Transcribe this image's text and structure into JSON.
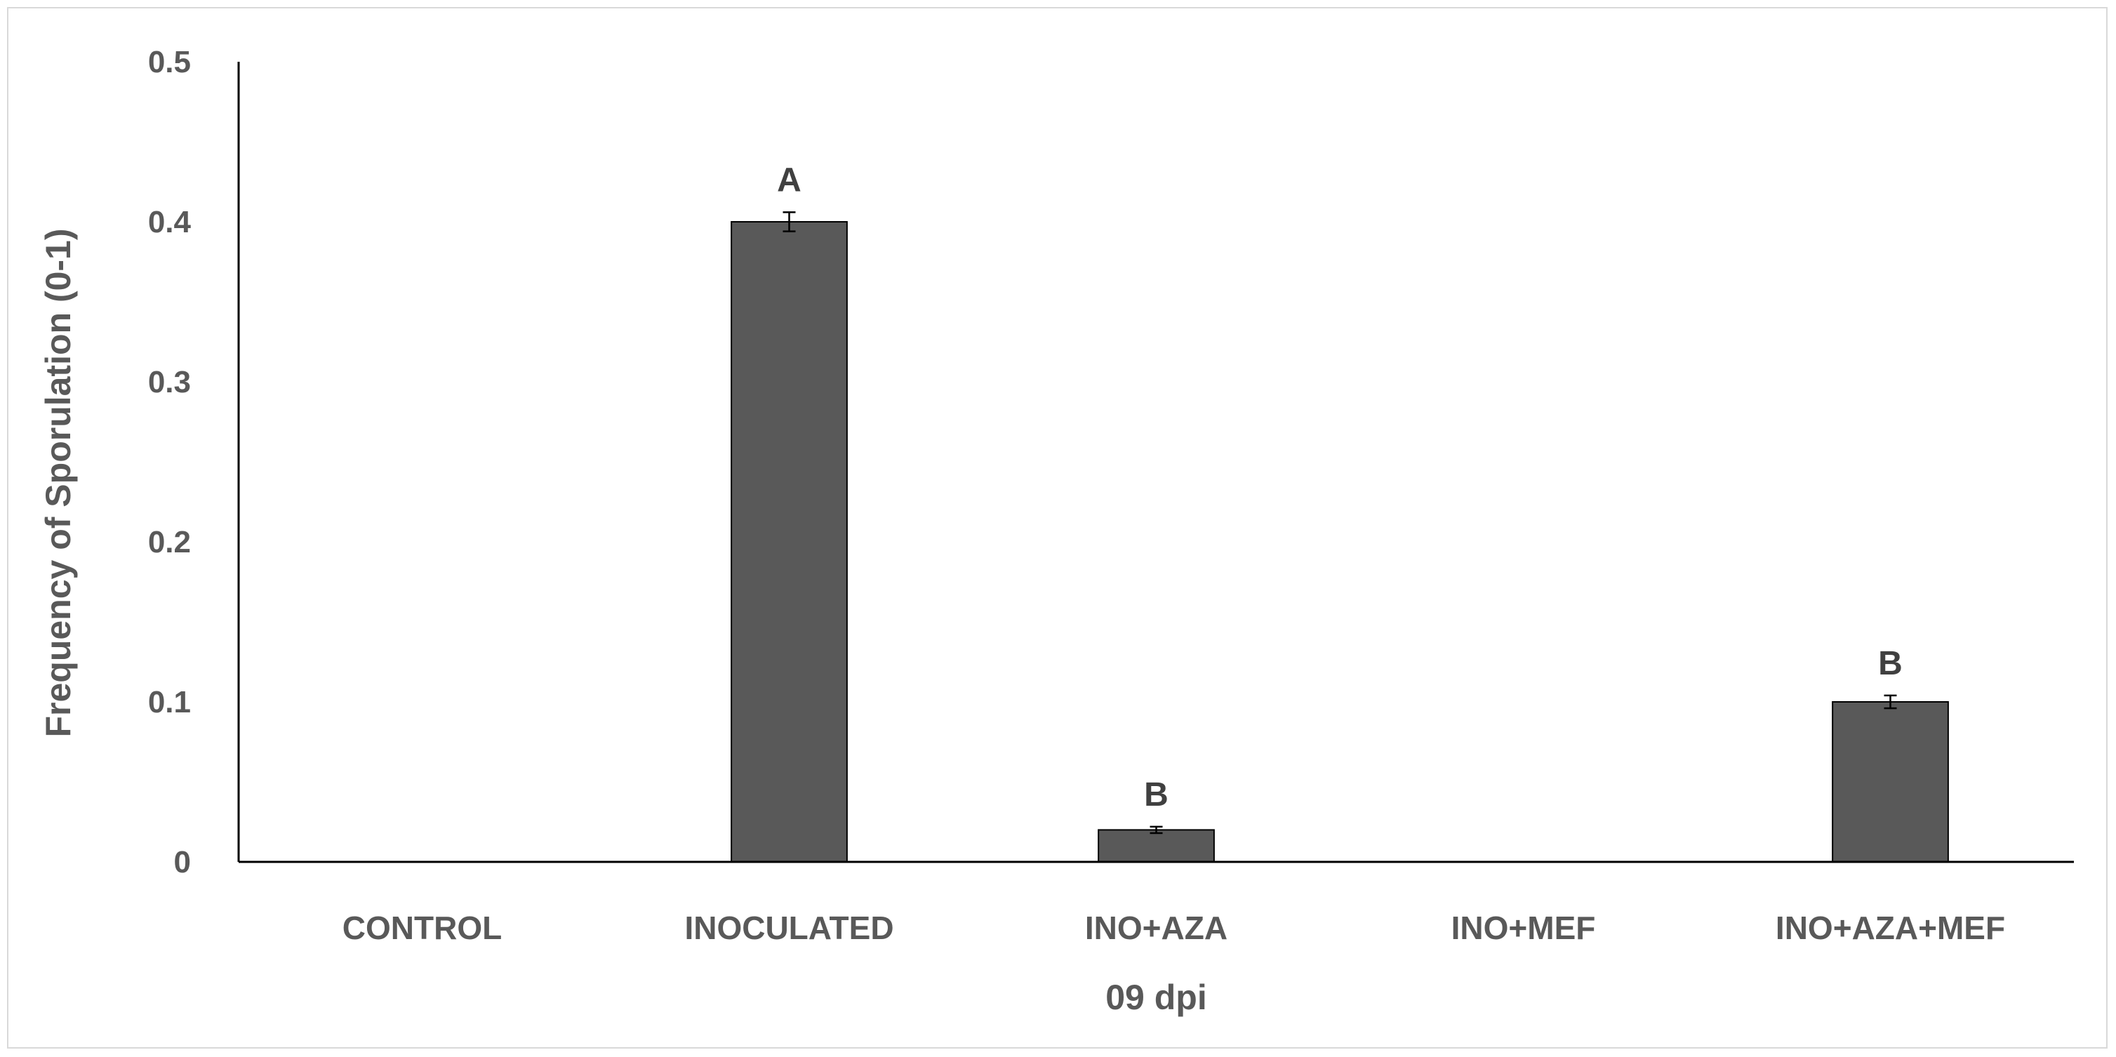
{
  "chart_data": {
    "type": "bar",
    "categories": [
      "CONTROL",
      "INOCULATED",
      "INO+AZA",
      "INO+MEF",
      "INO+AZA+MEF"
    ],
    "values": [
      0,
      0.4,
      0.02,
      0,
      0.1
    ],
    "error": [
      0,
      0.006,
      0.002,
      0,
      0.004
    ],
    "significance_labels": [
      "",
      "A",
      "B",
      "",
      "B"
    ],
    "xlabel": "09 dpi",
    "ylabel": "Frequency of Sporulation (0-1)",
    "ylim": [
      0,
      0.5
    ],
    "yticks": [
      "0",
      "0.1",
      "0.2",
      "0.3",
      "0.4",
      "0.5"
    ],
    "ytick_values": [
      0,
      0.1,
      0.2,
      0.3,
      0.4,
      0.5
    ],
    "grid": false,
    "legend": "none",
    "colors": {
      "bar_fill": "#595959",
      "bar_stroke": "#000000",
      "axis": "#000000",
      "text": "#595959"
    }
  }
}
